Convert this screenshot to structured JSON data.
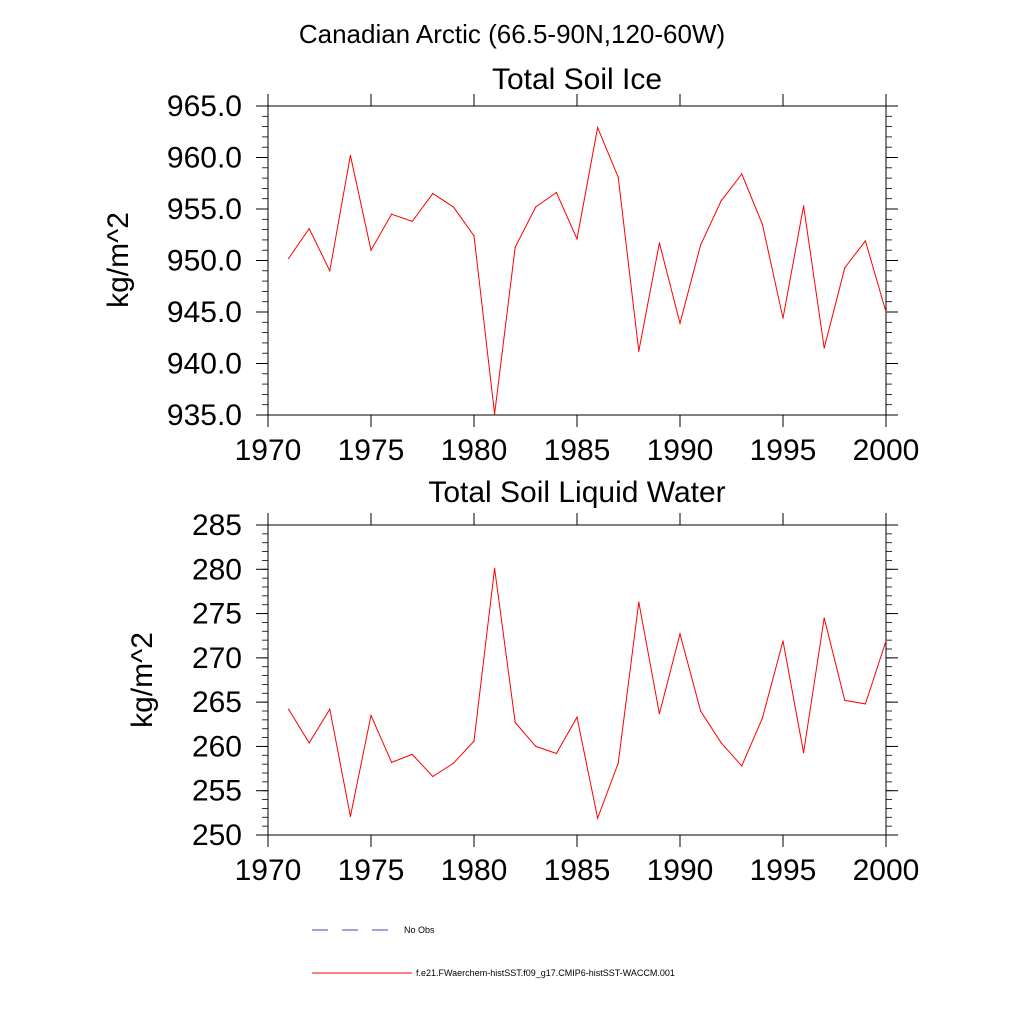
{
  "figure_title": "Canadian Arctic (66.5-90N,120-60W)",
  "legend": {
    "entries": [
      {
        "label": "No Obs",
        "color": "#4a4aa8",
        "style": "dashed"
      },
      {
        "label": "f.e21.FWaerchem-histSST.f09_g17.CMIP6-histSST-WACCM.001",
        "color": "#ff0000",
        "style": "solid"
      }
    ]
  },
  "colors": {
    "series": "#ff0000",
    "axes": "#000000"
  },
  "chart_data": [
    {
      "type": "line",
      "title": "Total Soil Ice",
      "xlabel": "",
      "ylabel": "kg/m^2",
      "xlim": [
        1970,
        2000
      ],
      "ylim": [
        935,
        965
      ],
      "xticks": [
        1970,
        1975,
        1980,
        1985,
        1990,
        1995,
        2000
      ],
      "xtick_labels": [
        "1970",
        "1975",
        "1980",
        "1985",
        "1990",
        "1995",
        "2000"
      ],
      "yticks": [
        935,
        940,
        945,
        950,
        955,
        960,
        965
      ],
      "ytick_labels": [
        "935.0",
        "940.0",
        "945.0",
        "950.0",
        "955.0",
        "960.0",
        "965.0"
      ],
      "grid": false,
      "x": [
        1971,
        1972,
        1973,
        1974,
        1975,
        1976,
        1977,
        1978,
        1979,
        1980,
        1981,
        1982,
        1983,
        1984,
        1985,
        1986,
        1987,
        1988,
        1989,
        1990,
        1991,
        1992,
        1993,
        1994,
        1995,
        1996,
        1997,
        1998,
        1999,
        2000
      ],
      "series": [
        {
          "name": "f.e21.FWaerchem-histSST.f09_g17.CMIP6-histSST-WACCM.001",
          "color": "#ff0000",
          "values": [
            950.2,
            953.1,
            949.0,
            960.2,
            951.0,
            954.5,
            953.8,
            956.5,
            955.2,
            952.4,
            935.1,
            951.3,
            955.2,
            956.6,
            952.1,
            962.9,
            958.1,
            941.2,
            951.7,
            943.9,
            951.5,
            955.8,
            958.4,
            953.5,
            944.4,
            955.3,
            941.5,
            949.3,
            951.9,
            945.0
          ]
        }
      ]
    },
    {
      "type": "line",
      "title": "Total Soil Liquid Water",
      "xlabel": "",
      "ylabel": "kg/m^2",
      "xlim": [
        1970,
        2000
      ],
      "ylim": [
        250,
        285
      ],
      "xticks": [
        1970,
        1975,
        1980,
        1985,
        1990,
        1995,
        2000
      ],
      "xtick_labels": [
        "1970",
        "1975",
        "1980",
        "1985",
        "1990",
        "1995",
        "2000"
      ],
      "yticks": [
        250,
        255,
        260,
        265,
        270,
        275,
        280,
        285
      ],
      "ytick_labels": [
        "250",
        "255",
        "260",
        "265",
        "270",
        "275",
        "280",
        "285"
      ],
      "grid": false,
      "x": [
        1971,
        1972,
        1973,
        1974,
        1975,
        1976,
        1977,
        1978,
        1979,
        1980,
        1981,
        1982,
        1983,
        1984,
        1985,
        1986,
        1987,
        1988,
        1989,
        1990,
        1991,
        1992,
        1993,
        1994,
        1995,
        1996,
        1997,
        1998,
        1999,
        2000
      ],
      "series": [
        {
          "name": "f.e21.FWaerchem-histSST.f09_g17.CMIP6-histSST-WACCM.001",
          "color": "#ff0000",
          "values": [
            264.2,
            260.4,
            264.2,
            252.1,
            263.5,
            258.2,
            259.1,
            256.6,
            258.1,
            260.6,
            280.1,
            262.7,
            260.0,
            259.2,
            263.3,
            251.9,
            258.1,
            276.3,
            263.7,
            272.7,
            264.0,
            260.4,
            257.8,
            263.2,
            271.9,
            259.3,
            274.5,
            265.2,
            264.8,
            271.9
          ]
        }
      ]
    }
  ]
}
